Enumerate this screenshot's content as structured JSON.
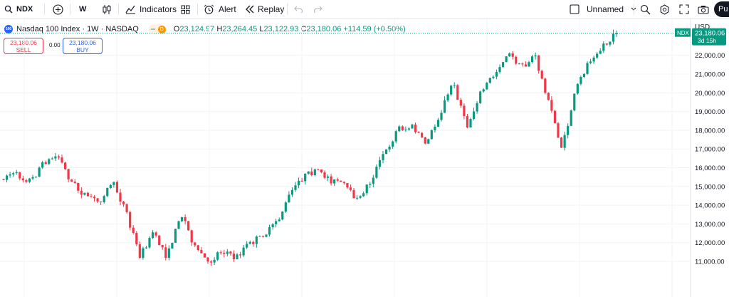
{
  "toolbar": {
    "symbol": "NDX",
    "interval": "W",
    "indicators_label": "Indicators",
    "alert_label": "Alert",
    "replay_label": "Replay",
    "layout_name": "Unnamed",
    "publish_label": "Pu"
  },
  "legend": {
    "title": "Nasdaq 100 Index · 1W · NASDAQ",
    "logo_text": "100",
    "badge": "D",
    "open_key": "O",
    "open": "23,124.97",
    "high_key": "H",
    "high": "23,264.45",
    "low_key": "L",
    "low": "23,122.93",
    "close_key": "C",
    "close": "23,180.06",
    "change": "+114.59 (+0.50%)"
  },
  "trade": {
    "sell_price": "23,180.06",
    "sell_label": "SELL",
    "buy_price": "23,180.06",
    "buy_label": "BUY",
    "spread": "0.00"
  },
  "price_scale": {
    "currency": "USD",
    "last_symbol": "NDX",
    "last_price": "23,180.06",
    "countdown": "3d 15h"
  },
  "colors": {
    "up": "#089981",
    "down": "#f23645",
    "accent": "#2962ff"
  },
  "chart_data": {
    "type": "candlestick",
    "interval": "1W",
    "title": "Nasdaq 100 Index · 1W · NASDAQ",
    "ylim": [
      10400,
      23800
    ],
    "y_ticks": [
      11000,
      12000,
      13000,
      14000,
      15000,
      16000,
      17000,
      18000,
      19000,
      20000,
      21000,
      22000
    ],
    "y_tick_labels": [
      "11,000.00",
      "12,000.00",
      "13,000.00",
      "14,000.00",
      "15,000.00",
      "16,000.00",
      "17,000.00",
      "18,000.00",
      "19,000.00",
      "20,000.00",
      "21,000.00",
      "22,000.00"
    ],
    "grid": true,
    "last_price": 23180.06,
    "anchors": [
      [
        15200,
        15400
      ],
      [
        15700,
        15650
      ],
      [
        15450,
        15250
      ],
      [
        16500,
        16300
      ],
      [
        16250,
        16500
      ],
      [
        15500,
        15200
      ],
      [
        14600,
        14500
      ],
      [
        14300,
        14100
      ],
      [
        15100,
        15300
      ],
      [
        13400,
        13600
      ],
      [
        11500,
        11300
      ],
      [
        12300,
        12500
      ],
      [
        11400,
        11200
      ],
      [
        13300,
        13600
      ],
      [
        12000,
        11800
      ],
      [
        11000,
        10900
      ],
      [
        11800,
        11600
      ],
      [
        10900,
        11200
      ],
      [
        11700,
        11900
      ],
      [
        12300,
        12400
      ],
      [
        12900,
        13000
      ],
      [
        14300,
        14500
      ],
      [
        15300,
        15500
      ],
      [
        15700,
        15900
      ],
      [
        15200,
        15300
      ],
      [
        14900,
        15100
      ],
      [
        14400,
        14200
      ],
      [
        15000,
        15400
      ],
      [
        16500,
        16800
      ],
      [
        17900,
        18100
      ],
      [
        18300,
        18200
      ],
      [
        17200,
        17300
      ],
      [
        18500,
        18800
      ],
      [
        20300,
        20500
      ],
      [
        18500,
        18200
      ],
      [
        19800,
        20000
      ],
      [
        20800,
        21000
      ],
      [
        21900,
        22100
      ],
      [
        21500,
        21300
      ],
      [
        21700,
        22000
      ],
      [
        19800,
        19500
      ],
      [
        18000,
        17000
      ],
      [
        20000,
        20200
      ],
      [
        21500,
        21700
      ],
      [
        21700,
        22500
      ],
      [
        23100,
        23180
      ]
    ]
  }
}
